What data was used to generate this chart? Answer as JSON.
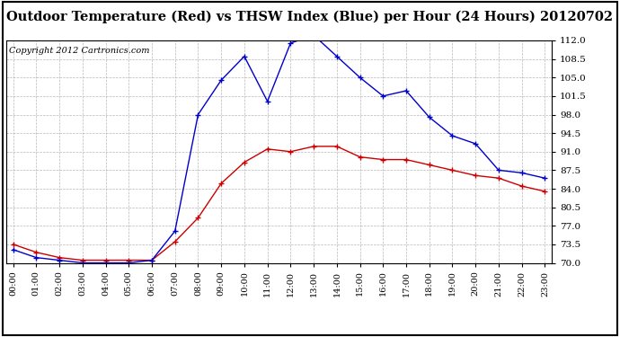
{
  "title": "Outdoor Temperature (Red) vs THSW Index (Blue) per Hour (24 Hours) 20120702",
  "copyright": "Copyright 2012 Cartronics.com",
  "hours": [
    "00:00",
    "01:00",
    "02:00",
    "03:00",
    "04:00",
    "05:00",
    "06:00",
    "07:00",
    "08:00",
    "09:00",
    "10:00",
    "11:00",
    "12:00",
    "13:00",
    "14:00",
    "15:00",
    "16:00",
    "17:00",
    "18:00",
    "19:00",
    "20:00",
    "21:00",
    "22:00",
    "23:00"
  ],
  "temp_red": [
    73.5,
    72.0,
    71.0,
    70.5,
    70.5,
    70.5,
    70.5,
    74.0,
    78.5,
    85.0,
    89.0,
    91.5,
    91.0,
    92.0,
    92.0,
    90.0,
    89.5,
    89.5,
    88.5,
    87.5,
    86.5,
    86.0,
    84.5,
    83.5
  ],
  "thsw_blue": [
    72.5,
    71.0,
    70.5,
    70.0,
    70.0,
    70.0,
    70.5,
    76.0,
    98.0,
    104.5,
    109.0,
    100.5,
    111.5,
    113.0,
    109.0,
    105.0,
    101.5,
    102.5,
    97.5,
    94.0,
    92.5,
    87.5,
    87.0,
    86.0
  ],
  "ylim": [
    70.0,
    112.0
  ],
  "yticks": [
    70.0,
    73.5,
    77.0,
    80.5,
    84.0,
    87.5,
    91.0,
    94.5,
    98.0,
    101.5,
    105.0,
    108.5,
    112.0
  ],
  "bg_color": "#ffffff",
  "grid_color": "#b0b0b0",
  "red_color": "#cc0000",
  "blue_color": "#0000cc",
  "title_fontsize": 10.5,
  "copyright_fontsize": 7
}
